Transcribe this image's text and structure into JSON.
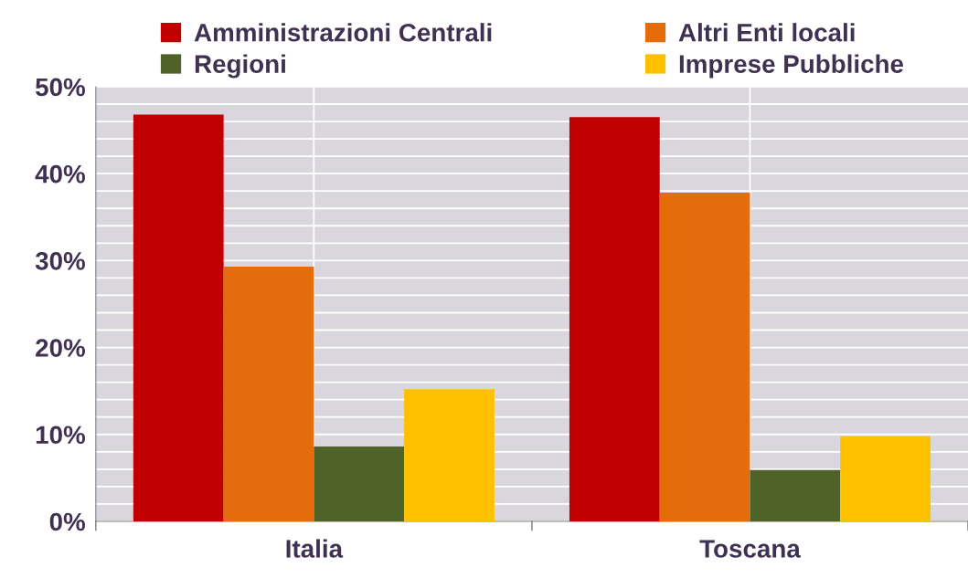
{
  "chart_data": {
    "type": "bar",
    "categories": [
      "Italia",
      "Toscana"
    ],
    "series": [
      {
        "name": "Amministrazioni Centrali",
        "color": "#c00000",
        "values": [
          46.8,
          46.5
        ]
      },
      {
        "name": "Altri Enti locali",
        "color": "#e46c0a",
        "values": [
          29.3,
          37.8
        ]
      },
      {
        "name": "Regioni",
        "color": "#4f6228",
        "values": [
          8.6,
          5.9
        ]
      },
      {
        "name": "Imprese Pubbliche",
        "color": "#ffc000",
        "values": [
          15.2,
          9.8
        ]
      }
    ],
    "ylim": [
      0,
      50
    ],
    "yticks": [
      {
        "value": 0,
        "label": "0%"
      },
      {
        "value": 2,
        "label": null
      },
      {
        "value": 4,
        "label": null
      },
      {
        "value": 6,
        "label": null
      },
      {
        "value": 8,
        "label": null
      },
      {
        "value": 10,
        "label": "10%"
      },
      {
        "value": 12,
        "label": null
      },
      {
        "value": 14,
        "label": null
      },
      {
        "value": 16,
        "label": null
      },
      {
        "value": 18,
        "label": null
      },
      {
        "value": 20,
        "label": "20%"
      },
      {
        "value": 22,
        "label": null
      },
      {
        "value": 24,
        "label": null
      },
      {
        "value": 26,
        "label": null
      },
      {
        "value": 28,
        "label": null
      },
      {
        "value": 30,
        "label": "30%"
      },
      {
        "value": 32,
        "label": null
      },
      {
        "value": 34,
        "label": null
      },
      {
        "value": 36,
        "label": null
      },
      {
        "value": 38,
        "label": null
      },
      {
        "value": 40,
        "label": "40%"
      },
      {
        "value": 42,
        "label": null
      },
      {
        "value": 44,
        "label": null
      },
      {
        "value": 46,
        "label": null
      },
      {
        "value": 48,
        "label": null
      },
      {
        "value": 50,
        "label": "50%"
      }
    ],
    "grid": true,
    "legend": "top"
  }
}
